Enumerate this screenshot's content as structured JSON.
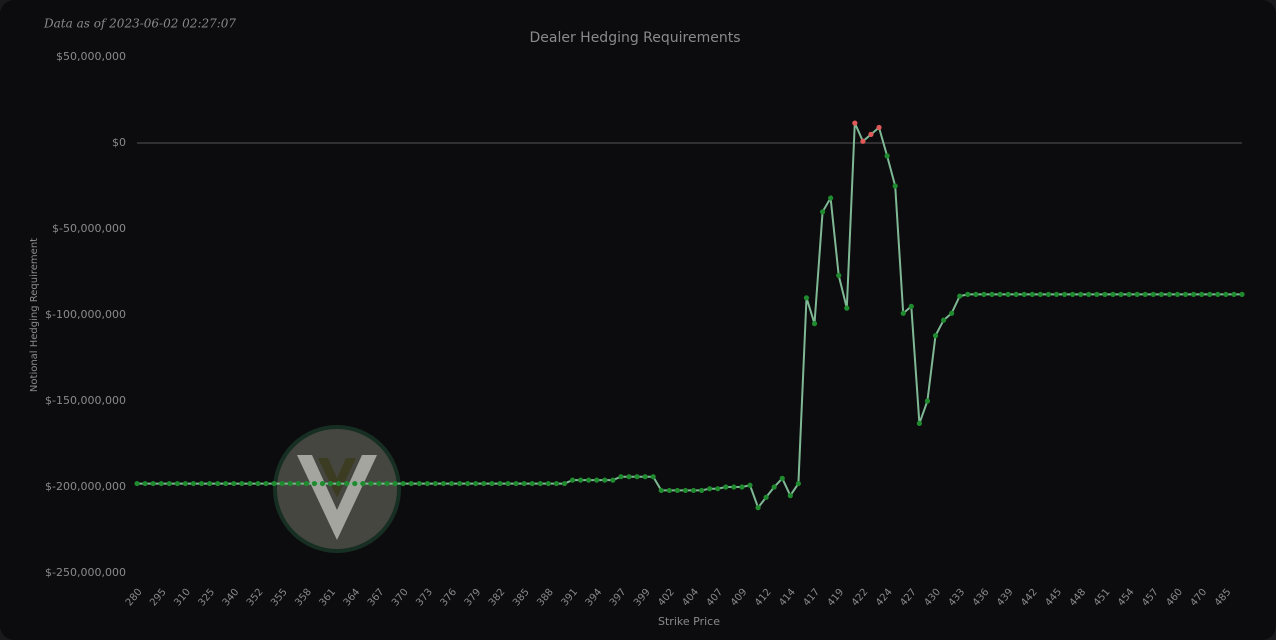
{
  "chart_data": {
    "type": "line",
    "title": "Dealer Hedging Requirements",
    "subtitle": "Data as of 2023-06-02 02:27:07",
    "x_label": "Strike Price",
    "y_label": "Notional Hedging Requirement",
    "categories": [
      "280",
      null,
      null,
      "295",
      null,
      null,
      "310",
      null,
      null,
      "325",
      null,
      null,
      "340",
      null,
      null,
      "352",
      null,
      null,
      "355",
      null,
      null,
      "358",
      null,
      null,
      "361",
      null,
      null,
      "364",
      null,
      null,
      "367",
      null,
      null,
      "370",
      null,
      null,
      "373",
      null,
      null,
      "376",
      null,
      null,
      "379",
      null,
      null,
      "382",
      null,
      null,
      "385",
      null,
      null,
      "388",
      null,
      null,
      "391",
      null,
      null,
      "394",
      null,
      null,
      "397",
      null,
      null,
      "399",
      null,
      null,
      "402",
      null,
      null,
      "404",
      null,
      null,
      "407",
      null,
      null,
      "409",
      null,
      null,
      "412",
      null,
      null,
      "414",
      null,
      null,
      "417",
      null,
      null,
      "419",
      null,
      null,
      "422",
      null,
      null,
      "424",
      null,
      null,
      "427",
      null,
      null,
      "430",
      null,
      null,
      "433",
      null,
      null,
      "436",
      null,
      null,
      "439",
      null,
      null,
      "442",
      null,
      null,
      "445",
      null,
      null,
      "448",
      null,
      null,
      "451",
      null,
      null,
      "454",
      null,
      null,
      "457",
      null,
      null,
      "460",
      null,
      null,
      "470",
      null,
      null,
      "485",
      null,
      null
    ],
    "values": [
      -198000000,
      -198000000,
      -198000000,
      -198000000,
      -198000000,
      -198000000,
      -198000000,
      -198000000,
      -198000000,
      -198000000,
      -198000000,
      -198000000,
      -198000000,
      -198000000,
      -198000000,
      -198000000,
      -198000000,
      -198000000,
      -198000000,
      -198000000,
      -198000000,
      -198000000,
      -198000000,
      -198000000,
      -198000000,
      -198000000,
      -198000000,
      -198000000,
      -198000000,
      -198000000,
      -198000000,
      -198000000,
      -198000000,
      -198000000,
      -198000000,
      -198000000,
      -198000000,
      -198000000,
      -198000000,
      -198000000,
      -198000000,
      -198000000,
      -198000000,
      -198000000,
      -198000000,
      -198000000,
      -198000000,
      -198000000,
      -198000000,
      -198000000,
      -198000000,
      -198000000,
      -198000000,
      -198000000,
      -196000000,
      -196000000,
      -196000000,
      -196000000,
      -196000000,
      -196000000,
      -194000000,
      -194000000,
      -194000000,
      -194000000,
      -194000000,
      -202000000,
      -202000000,
      -202000000,
      -202000000,
      -202000000,
      -202000000,
      -201000000,
      -201000000,
      -200000000,
      -200000000,
      -200000000,
      -199000000,
      -212000000,
      -206000000,
      -200000000,
      -195000000,
      -205000000,
      -198000000,
      -90000000,
      -105000000,
      -40000000,
      -32000000,
      -77000000,
      -96000000,
      11600000,
      1000000,
      5000000,
      9000000,
      -7500000,
      -25000000,
      -99000000,
      -95000000,
      -163000000,
      -150000000,
      -112000000,
      -103000000,
      -99000000,
      -89000000,
      -88000000,
      -88000000,
      -88000000,
      -88000000,
      -88000000,
      -88000000,
      -88000000,
      -88000000,
      -88000000,
      -88000000,
      -88000000,
      -88000000,
      -88000000,
      -88000000,
      -88000000,
      -88000000,
      -88000000,
      -88000000,
      -88000000,
      -88000000,
      -88000000,
      -88000000,
      -88000000,
      -88000000,
      -88000000,
      -88000000,
      -88000000,
      -88000000,
      -88000000,
      -88000000,
      -88000000,
      -88000000,
      -88000000,
      -88000000,
      -88000000
    ],
    "line_color": "#7fb894",
    "positive_color": "#e05a5a",
    "negative_color": "#1f8a2e",
    "ylim": [
      -250000000,
      50000000
    ],
    "yticks": [
      {
        "value": -250000000,
        "label": "$-250,000,000"
      },
      {
        "value": -200000000,
        "label": "$-200,000,000"
      },
      {
        "value": -150000000,
        "label": "$-150,000,000"
      },
      {
        "value": -100000000,
        "label": "$-100,000,000"
      },
      {
        "value": -50000000,
        "label": "$-50,000,000"
      },
      {
        "value": 0,
        "label": "$0"
      },
      {
        "value": 50000000,
        "label": "$50,000,000"
      }
    ],
    "zero_line": true
  }
}
